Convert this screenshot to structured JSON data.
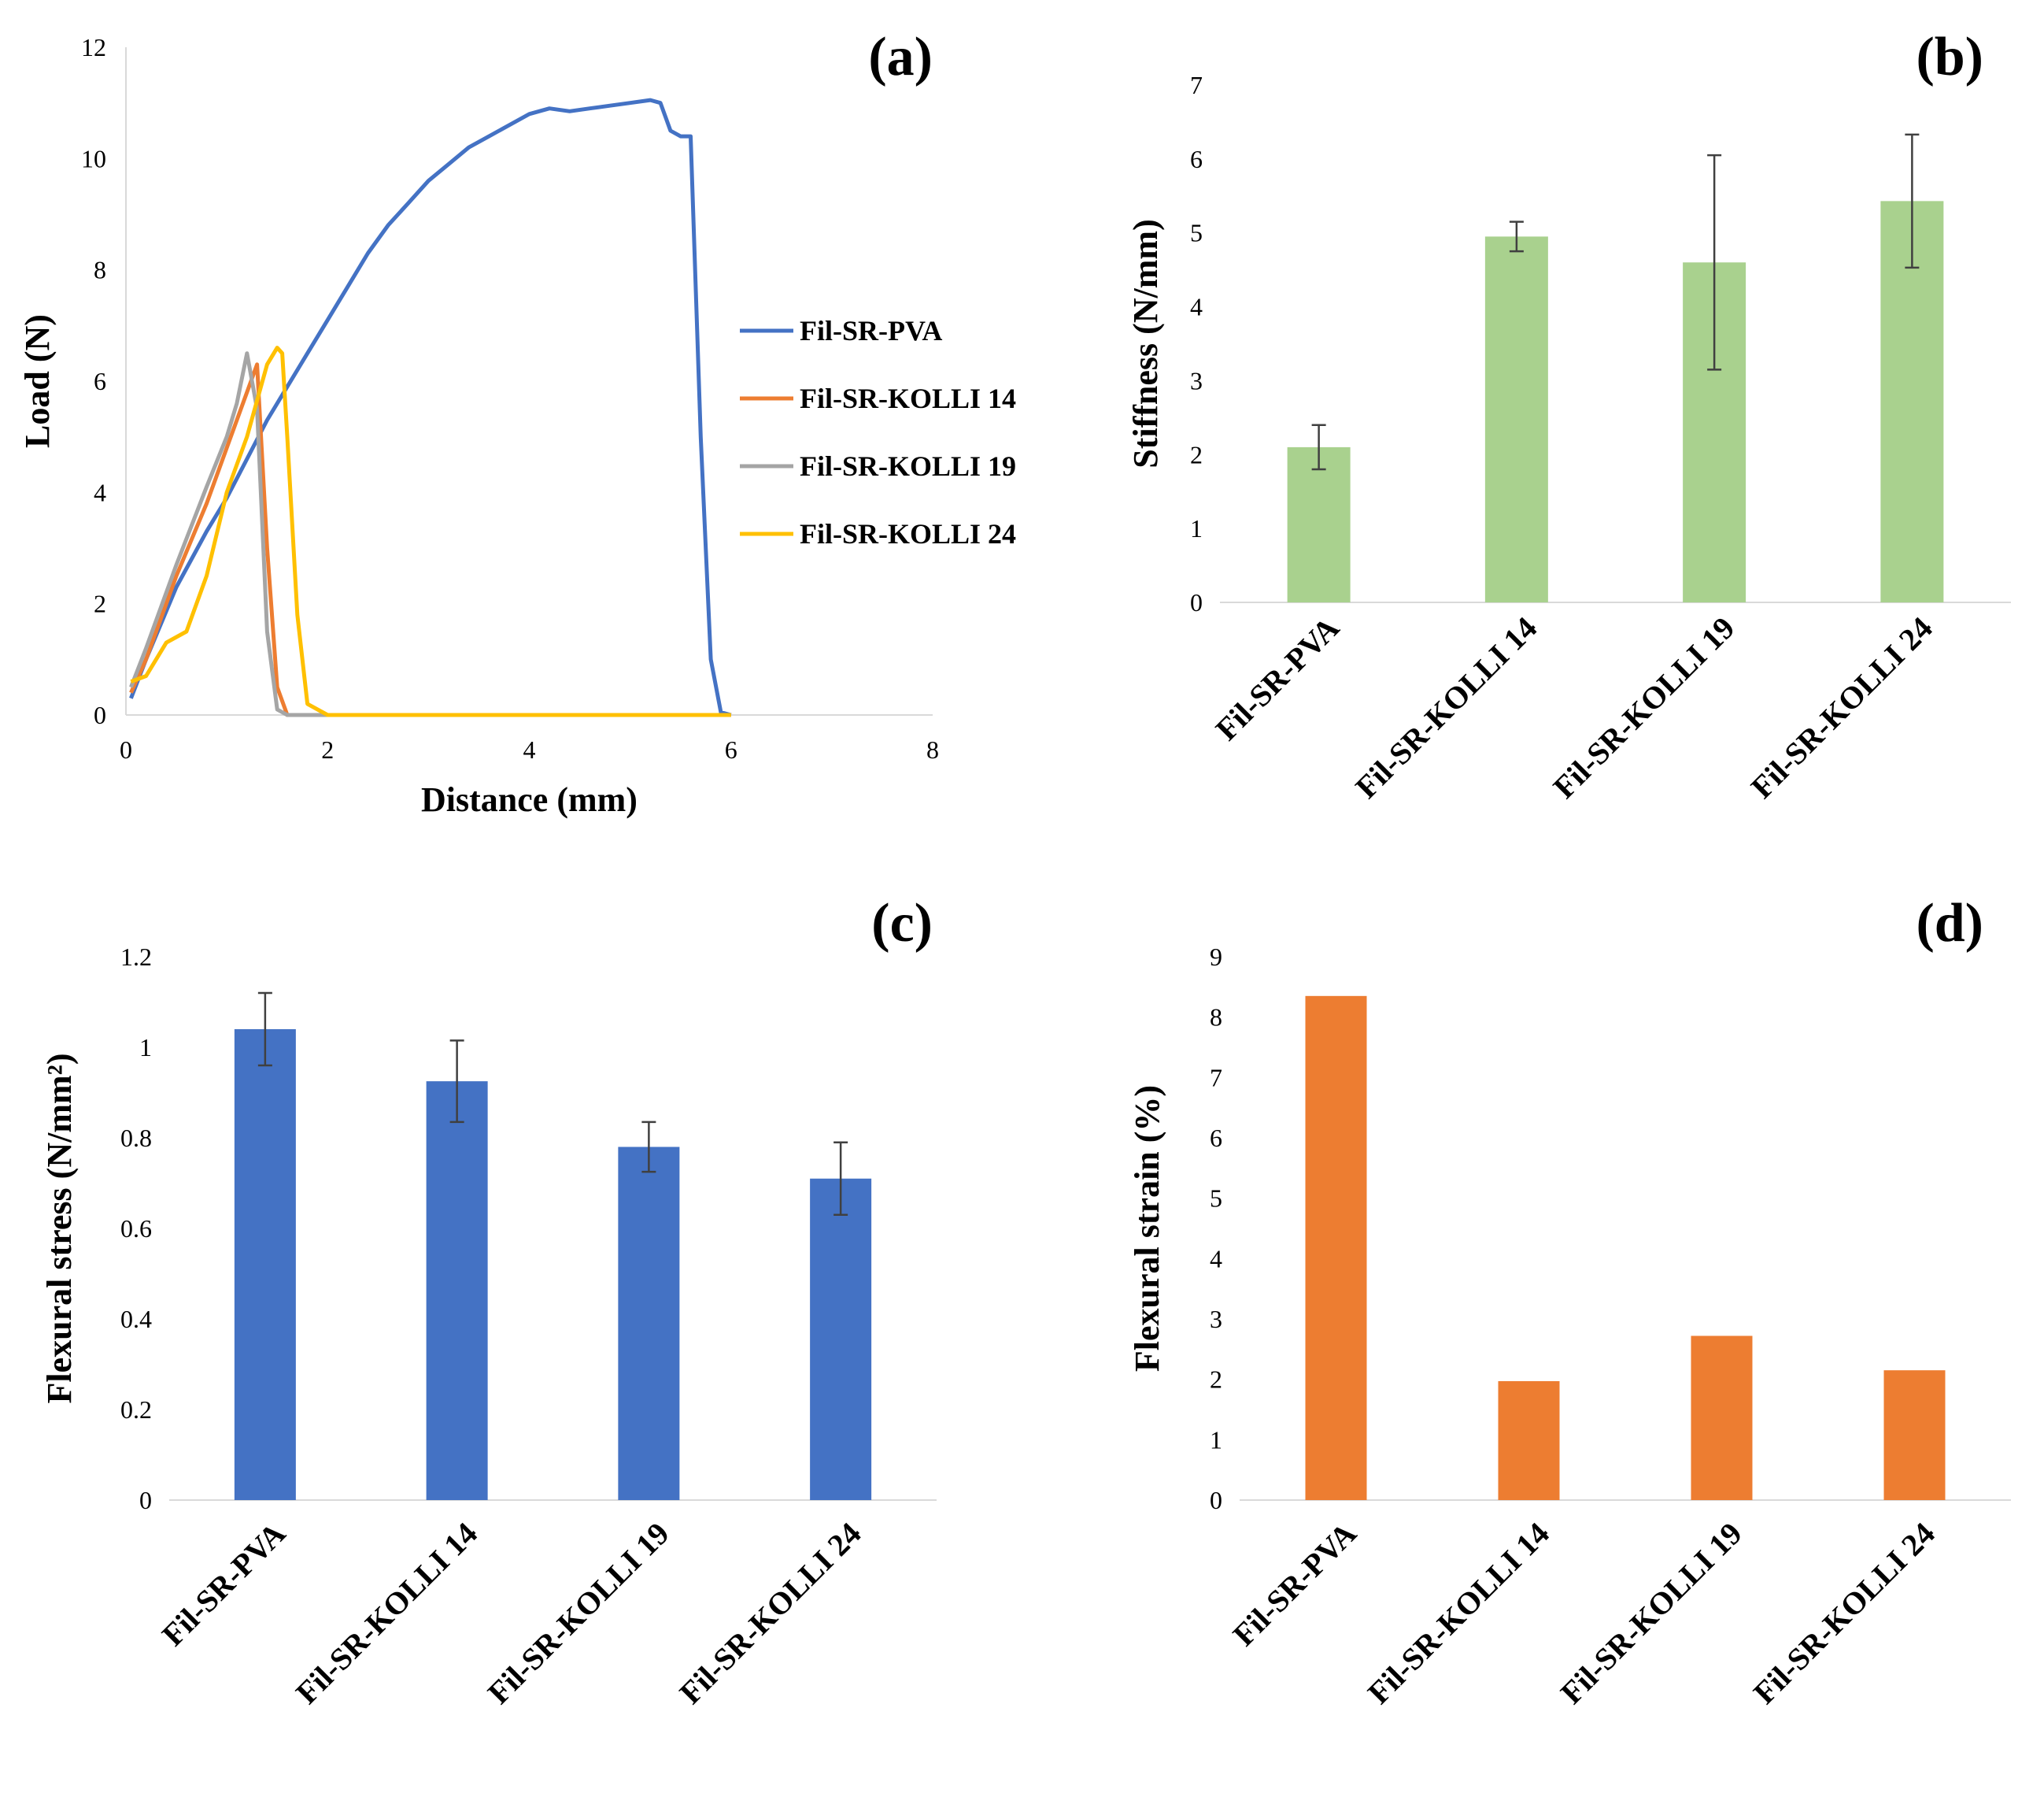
{
  "chart_data": [
    {
      "id": "a",
      "panel_label": "(a)",
      "type": "line",
      "xlabel": "Distance (mm)",
      "ylabel": "Load (N)",
      "xlim": [
        0,
        8
      ],
      "ylim": [
        0,
        12
      ],
      "xticks": [
        "0",
        "2",
        "4",
        "6",
        "8"
      ],
      "yticks": [
        "0",
        "2",
        "4",
        "6",
        "8",
        "10",
        "12"
      ],
      "legend_position": "right",
      "series": [
        {
          "name": "Fil-SR-PVA",
          "color": "#4472c4",
          "x": [
            0.05,
            0.2,
            0.5,
            0.8,
            1.0,
            1.2,
            1.4,
            1.6,
            1.8,
            2.0,
            2.2,
            2.4,
            2.6,
            2.8,
            3.0,
            3.2,
            3.4,
            3.6,
            3.8,
            4.0,
            4.2,
            4.4,
            4.6,
            4.8,
            5.0,
            5.2,
            5.3,
            5.4,
            5.5,
            5.6,
            5.7,
            5.8,
            5.9,
            6.0
          ],
          "y": [
            0.3,
            1.0,
            2.3,
            3.3,
            3.9,
            4.6,
            5.3,
            5.9,
            6.5,
            7.1,
            7.7,
            8.3,
            8.8,
            9.2,
            9.6,
            9.9,
            10.2,
            10.4,
            10.6,
            10.8,
            10.9,
            10.85,
            10.9,
            10.95,
            11.0,
            11.05,
            11.0,
            10.5,
            10.4,
            10.4,
            5.0,
            1.0,
            0.05,
            0.0
          ]
        },
        {
          "name": "Fil-SR-KOLLI 14",
          "color": "#ed7d31",
          "x": [
            0.05,
            0.2,
            0.5,
            0.8,
            1.0,
            1.2,
            1.3,
            1.4,
            1.5,
            1.6,
            2.0,
            6.0
          ],
          "y": [
            0.4,
            1.0,
            2.5,
            3.8,
            4.8,
            5.8,
            6.3,
            3.0,
            0.5,
            0.0,
            0.0,
            0.0
          ]
        },
        {
          "name": "Fil-SR-KOLLI 19",
          "color": "#a5a5a5",
          "x": [
            0.05,
            0.2,
            0.5,
            0.8,
            1.0,
            1.1,
            1.2,
            1.3,
            1.4,
            1.5,
            1.6,
            2.0,
            6.0
          ],
          "y": [
            0.5,
            1.2,
            2.7,
            4.1,
            5.0,
            5.6,
            6.5,
            5.5,
            1.5,
            0.1,
            0.0,
            0.0,
            0.0
          ]
        },
        {
          "name": "Fil-SR-KOLLI 24",
          "color": "#ffc000",
          "x": [
            0.05,
            0.2,
            0.4,
            0.6,
            0.8,
            1.0,
            1.2,
            1.4,
            1.5,
            1.55,
            1.6,
            1.7,
            1.8,
            2.0,
            6.0
          ],
          "y": [
            0.6,
            0.7,
            1.3,
            1.5,
            2.5,
            4.0,
            5.0,
            6.3,
            6.6,
            6.5,
            5.0,
            1.8,
            0.2,
            0.0,
            0.0
          ]
        }
      ]
    },
    {
      "id": "b",
      "panel_label": "(b)",
      "type": "bar",
      "ylabel": "Stiffness (N/mm)",
      "xlabel": "",
      "ylim": [
        0,
        7
      ],
      "yticks": [
        "0",
        "1",
        "2",
        "3",
        "4",
        "5",
        "6",
        "7"
      ],
      "color": "#a9d18e",
      "categories": [
        "Fil-SR-PVA",
        "Fil-SR-KOLLI 14",
        "Fil-SR-KOLLI 19",
        "Fil-SR-KOLLI 24"
      ],
      "values": [
        2.1,
        4.95,
        4.6,
        5.43
      ],
      "errors": [
        0.3,
        0.2,
        1.45,
        0.9
      ]
    },
    {
      "id": "c",
      "panel_label": "(c)",
      "type": "bar",
      "ylabel": "Flexural stress (N/mm²)",
      "xlabel": "",
      "ylim": [
        0,
        1.2
      ],
      "yticks": [
        "0",
        "0.2",
        "0.4",
        "0.6",
        "0.8",
        "1",
        "1.2"
      ],
      "color": "#4472c4",
      "categories": [
        "Fil-SR-PVA",
        "Fil-SR-KOLLI 14",
        "Fil-SR-KOLLI 19",
        "Fil-SR-KOLLI 24"
      ],
      "values": [
        1.04,
        0.925,
        0.78,
        0.71
      ],
      "errors": [
        0.08,
        0.09,
        0.055,
        0.08
      ]
    },
    {
      "id": "d",
      "panel_label": "(d)",
      "type": "bar",
      "ylabel": "Flexural strain (%)",
      "xlabel": "",
      "ylim": [
        0,
        9
      ],
      "yticks": [
        "0",
        "1",
        "2",
        "3",
        "4",
        "5",
        "6",
        "7",
        "8",
        "9"
      ],
      "color": "#ed7d31",
      "categories": [
        "Fil-SR-PVA",
        "Fil-SR-KOLLI 14",
        "Fil-SR-KOLLI 19",
        "Fil-SR-KOLLI 24"
      ],
      "values": [
        8.35,
        1.97,
        2.72,
        2.15
      ],
      "errors": null
    }
  ]
}
